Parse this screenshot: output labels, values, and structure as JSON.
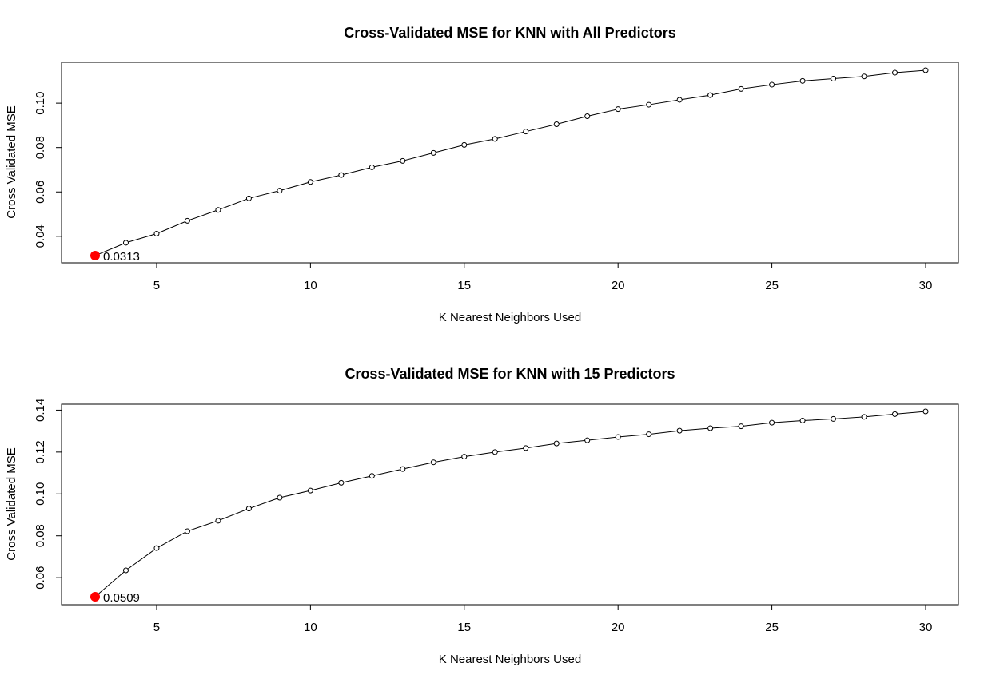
{
  "chart_data": [
    {
      "type": "line",
      "title": "Cross-Validated MSE for KNN with All Predictors",
      "xlabel": "K Nearest Neighbors Used",
      "ylabel": "Cross Validated MSE",
      "xlim": [
        3,
        30
      ],
      "ylim": [
        0.0313,
        0.1148
      ],
      "xticks": [
        5,
        10,
        15,
        20,
        25,
        30
      ],
      "yticks": [
        0.04,
        0.06,
        0.08,
        0.1
      ],
      "ytick_labels": [
        "0.04",
        "0.06",
        "0.08",
        "0.10"
      ],
      "x": [
        3,
        4,
        5,
        6,
        7,
        8,
        9,
        10,
        11,
        12,
        13,
        14,
        15,
        16,
        17,
        18,
        19,
        20,
        21,
        22,
        23,
        24,
        25,
        26,
        27,
        28,
        29,
        30
      ],
      "values": [
        0.0313,
        0.0371,
        0.0412,
        0.047,
        0.0519,
        0.0571,
        0.0606,
        0.0645,
        0.0676,
        0.0711,
        0.074,
        0.0776,
        0.0812,
        0.0839,
        0.0872,
        0.0905,
        0.0941,
        0.0973,
        0.0993,
        0.1015,
        0.1036,
        0.1064,
        0.1083,
        0.11,
        0.111,
        0.112,
        0.1137,
        0.1148
      ],
      "highlight": {
        "x": 3,
        "y": 0.0313,
        "label": "0.0313",
        "color": "#ff0000"
      },
      "grid": false,
      "legend": "none"
    },
    {
      "type": "line",
      "title": "Cross-Validated MSE for KNN with 15 Predictors",
      "xlabel": "K Nearest Neighbors Used",
      "ylabel": "Cross Validated MSE",
      "xlim": [
        3,
        30
      ],
      "ylim": [
        0.0509,
        0.1394
      ],
      "xticks": [
        5,
        10,
        15,
        20,
        25,
        30
      ],
      "yticks": [
        0.06,
        0.08,
        0.1,
        0.12,
        0.14
      ],
      "ytick_labels": [
        "0.06",
        "0.08",
        "0.10",
        "0.12",
        "0.14"
      ],
      "x": [
        3,
        4,
        5,
        6,
        7,
        8,
        9,
        10,
        11,
        12,
        13,
        14,
        15,
        16,
        17,
        18,
        19,
        20,
        21,
        22,
        23,
        24,
        25,
        26,
        27,
        28,
        29,
        30
      ],
      "values": [
        0.0509,
        0.0635,
        0.0741,
        0.0822,
        0.0872,
        0.093,
        0.0982,
        0.1016,
        0.1053,
        0.1086,
        0.1119,
        0.1151,
        0.1178,
        0.12,
        0.1219,
        0.1241,
        0.1256,
        0.1272,
        0.1285,
        0.1302,
        0.1314,
        0.1323,
        0.134,
        0.135,
        0.1358,
        0.1368,
        0.1381,
        0.1394
      ],
      "highlight": {
        "x": 3,
        "y": 0.0509,
        "label": "0.0509",
        "color": "#ff0000"
      },
      "grid": false,
      "legend": "none"
    }
  ]
}
